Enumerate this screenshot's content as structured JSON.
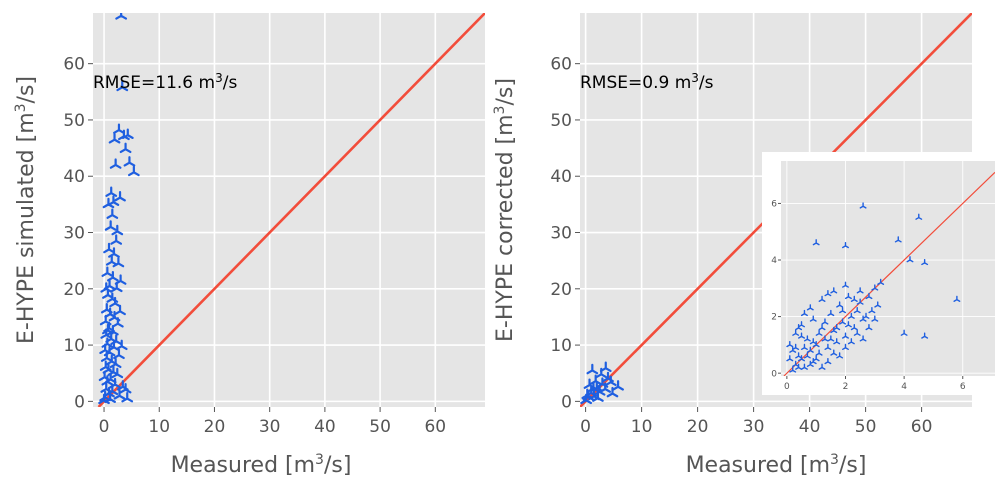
{
  "chart_data": [
    {
      "type": "scatter",
      "title": "",
      "xlabel": "Measured [m³/s]",
      "ylabel": "E-HYPE simulated [m³/s]",
      "xlim": [
        -2,
        69
      ],
      "ylim": [
        -1,
        69
      ],
      "xticks": [
        "0",
        "10",
        "20",
        "30",
        "40",
        "50",
        "60"
      ],
      "yticks": [
        "0",
        "10",
        "20",
        "30",
        "40",
        "50",
        "60"
      ],
      "grid": true,
      "annotation": {
        "prefix": "RMSE=11.6 m",
        "sup": "3",
        "suffix": "/s"
      },
      "reference_line": "1:1",
      "colors": {
        "points": "#1f5fe0",
        "line": "#f24d3b",
        "background": "#e5e5e5"
      },
      "series": [
        {
          "values": [
            [
              3.1,
              68.5
            ],
            [
              3.3,
              55.8
            ],
            [
              2.7,
              48.2
            ],
            [
              3.6,
              47.1
            ],
            [
              1.9,
              46.5
            ],
            [
              4.3,
              47.3
            ],
            [
              3.9,
              44.8
            ],
            [
              4.6,
              42.4
            ],
            [
              5.4,
              40.7
            ],
            [
              2.1,
              42.0
            ],
            [
              1.3,
              37.0
            ],
            [
              2.9,
              36.2
            ],
            [
              1.7,
              35.4
            ],
            [
              0.8,
              35.0
            ],
            [
              1.2,
              31.0
            ],
            [
              2.2,
              28.5
            ],
            [
              0.9,
              27.0
            ],
            [
              1.8,
              26.2
            ],
            [
              1.4,
              24.8
            ],
            [
              2.6,
              24.5
            ],
            [
              0.6,
              22.8
            ],
            [
              1.6,
              22.0
            ],
            [
              1.0,
              20.5
            ],
            [
              2.3,
              20.1
            ],
            [
              0.7,
              18.9
            ],
            [
              1.5,
              18.2
            ],
            [
              2.0,
              17.4
            ],
            [
              0.5,
              16.3
            ],
            [
              1.1,
              15.5
            ],
            [
              1.9,
              14.9
            ],
            [
              0.3,
              14.2
            ],
            [
              2.5,
              13.8
            ],
            [
              0.9,
              13.0
            ],
            [
              1.6,
              12.4
            ],
            [
              0.4,
              11.8
            ],
            [
              1.3,
              11.1
            ],
            [
              2.2,
              10.7
            ],
            [
              0.6,
              10.2
            ],
            [
              1.8,
              9.6
            ],
            [
              0.2,
              9.1
            ],
            [
              1.0,
              8.7
            ],
            [
              2.7,
              8.2
            ],
            [
              0.5,
              7.7
            ],
            [
              1.4,
              7.1
            ],
            [
              2.1,
              6.6
            ],
            [
              0.3,
              6.1
            ],
            [
              0.8,
              5.6
            ],
            [
              1.7,
              5.2
            ],
            [
              2.4,
              4.8
            ],
            [
              0.1,
              4.3
            ],
            [
              1.2,
              3.9
            ],
            [
              0.6,
              3.5
            ],
            [
              2.0,
              3.0
            ],
            [
              3.4,
              2.6
            ],
            [
              0.4,
              2.2
            ],
            [
              1.5,
              1.8
            ],
            [
              0.9,
              1.4
            ],
            [
              2.8,
              1.0
            ],
            [
              0.2,
              0.7
            ],
            [
              1.1,
              0.4
            ],
            [
              4.2,
              0.5
            ],
            [
              3.9,
              2.1
            ],
            [
              0.0,
              0.2
            ],
            [
              0.7,
              12.6
            ],
            [
              2.9,
              16.0
            ],
            [
              3.0,
              21.4
            ],
            [
              2.4,
              30.2
            ],
            [
              1.5,
              33.1
            ],
            [
              0.4,
              20.0
            ],
            [
              3.2,
              9.8
            ]
          ]
        }
      ]
    },
    {
      "type": "scatter",
      "title": "",
      "xlabel": "Measured [m³/s]",
      "ylabel": "E-HYPE corrected [m³/s]",
      "xlim": [
        -1,
        69
      ],
      "ylim": [
        -1,
        69
      ],
      "xticks": [
        "0",
        "10",
        "20",
        "30",
        "40",
        "50",
        "60"
      ],
      "yticks": [
        "0",
        "10",
        "20",
        "30",
        "40",
        "50",
        "60"
      ],
      "grid": true,
      "annotation": {
        "prefix": "RMSE=0.9 m",
        "sup": "3",
        "suffix": "/s"
      },
      "reference_line": "1:1",
      "colors": {
        "points": "#1f5fe0",
        "line": "#f24d3b",
        "background": "#e5e5e5"
      },
      "series": [
        {
          "values": [
            [
              0.1,
              0.2
            ],
            [
              0.5,
              0.8
            ],
            [
              1.0,
              1.5
            ],
            [
              1.5,
              0.9
            ],
            [
              2.0,
              2.4
            ],
            [
              2.5,
              1.7
            ],
            [
              3.0,
              3.1
            ],
            [
              3.5,
              2.2
            ],
            [
              4.0,
              4.1
            ],
            [
              4.5,
              3.4
            ],
            [
              1.2,
              5.5
            ],
            [
              2.8,
              4.8
            ],
            [
              3.6,
              5.9
            ],
            [
              0.7,
              2.9
            ],
            [
              1.8,
              3.6
            ],
            [
              2.2,
              0.6
            ],
            [
              0.3,
              1.1
            ],
            [
              5.8,
              2.6
            ],
            [
              4.8,
              1.4
            ],
            [
              1.4,
              2.3
            ]
          ]
        }
      ]
    },
    {
      "type": "scatter",
      "title": "",
      "xlabel": "",
      "ylabel": "",
      "xlim": [
        -0.2,
        7.1
      ],
      "ylim": [
        -0.1,
        7.5
      ],
      "xticks": [
        "0",
        "2",
        "4",
        "6"
      ],
      "yticks": [
        "0",
        "2",
        "4",
        "6"
      ],
      "grid": true,
      "reference_line": "1:1",
      "colors": {
        "points": "#1f5fe0",
        "line": "#f24d3b",
        "background": "#e5e5e5"
      },
      "series": [
        {
          "values": [
            [
              2.6,
              5.9
            ],
            [
              4.5,
              5.5
            ],
            [
              3.8,
              4.7
            ],
            [
              4.2,
              4.0
            ],
            [
              4.7,
              3.9
            ],
            [
              1.0,
              4.6
            ],
            [
              2.0,
              4.5
            ],
            [
              5.8,
              2.6
            ],
            [
              4.0,
              1.4
            ],
            [
              4.7,
              1.3
            ],
            [
              3.2,
              3.2
            ],
            [
              3.0,
              3.0
            ],
            [
              2.5,
              2.5
            ],
            [
              0.3,
              0.3
            ],
            [
              0.5,
              0.5
            ],
            [
              0.8,
              0.8
            ],
            [
              1.0,
              1.0
            ],
            [
              1.3,
              1.2
            ],
            [
              1.6,
              1.5
            ],
            [
              1.9,
              1.8
            ],
            [
              2.2,
              2.0
            ],
            [
              2.8,
              2.7
            ],
            [
              0.2,
              0.1
            ],
            [
              0.4,
              0.6
            ],
            [
              0.6,
              0.2
            ],
            [
              0.9,
              0.4
            ],
            [
              1.1,
              0.7
            ],
            [
              1.4,
              0.9
            ],
            [
              1.7,
              1.1
            ],
            [
              2.0,
              1.3
            ],
            [
              2.3,
              1.6
            ],
            [
              2.6,
              1.9
            ],
            [
              0.1,
              1.0
            ],
            [
              0.3,
              1.4
            ],
            [
              0.5,
              1.7
            ],
            [
              0.7,
              1.2
            ],
            [
              0.9,
              1.9
            ],
            [
              1.2,
              1.6
            ],
            [
              1.5,
              2.1
            ],
            [
              1.8,
              2.4
            ],
            [
              2.1,
              2.7
            ],
            [
              2.4,
              2.2
            ],
            [
              2.7,
              2.0
            ],
            [
              0.2,
              0.8
            ],
            [
              0.4,
              0.2
            ],
            [
              0.6,
              0.9
            ],
            [
              0.8,
              0.3
            ],
            [
              1.0,
              0.5
            ],
            [
              1.2,
              0.2
            ],
            [
              1.4,
              0.4
            ],
            [
              1.6,
              0.7
            ],
            [
              1.8,
              0.6
            ],
            [
              2.0,
              0.9
            ],
            [
              2.2,
              1.1
            ],
            [
              2.4,
              1.4
            ],
            [
              2.6,
              1.2
            ],
            [
              2.8,
              1.6
            ],
            [
              3.0,
              1.9
            ],
            [
              3.1,
              2.4
            ],
            [
              2.9,
              2.2
            ],
            [
              0.1,
              0.5
            ],
            [
              0.3,
              0.9
            ],
            [
              0.5,
              1.3
            ],
            [
              0.7,
              0.6
            ],
            [
              0.9,
              1.1
            ],
            [
              1.1,
              1.4
            ],
            [
              1.3,
              1.8
            ],
            [
              1.5,
              1.2
            ],
            [
              1.7,
              1.6
            ],
            [
              1.9,
              2.2
            ],
            [
              2.1,
              1.7
            ],
            [
              2.3,
              2.6
            ],
            [
              2.5,
              2.9
            ],
            [
              0.8,
              2.3
            ],
            [
              1.2,
              2.6
            ],
            [
              1.6,
              2.9
            ],
            [
              2.0,
              3.1
            ],
            [
              0.4,
              1.6
            ],
            [
              0.6,
              2.1
            ],
            [
              1.4,
              2.8
            ]
          ]
        }
      ]
    }
  ]
}
